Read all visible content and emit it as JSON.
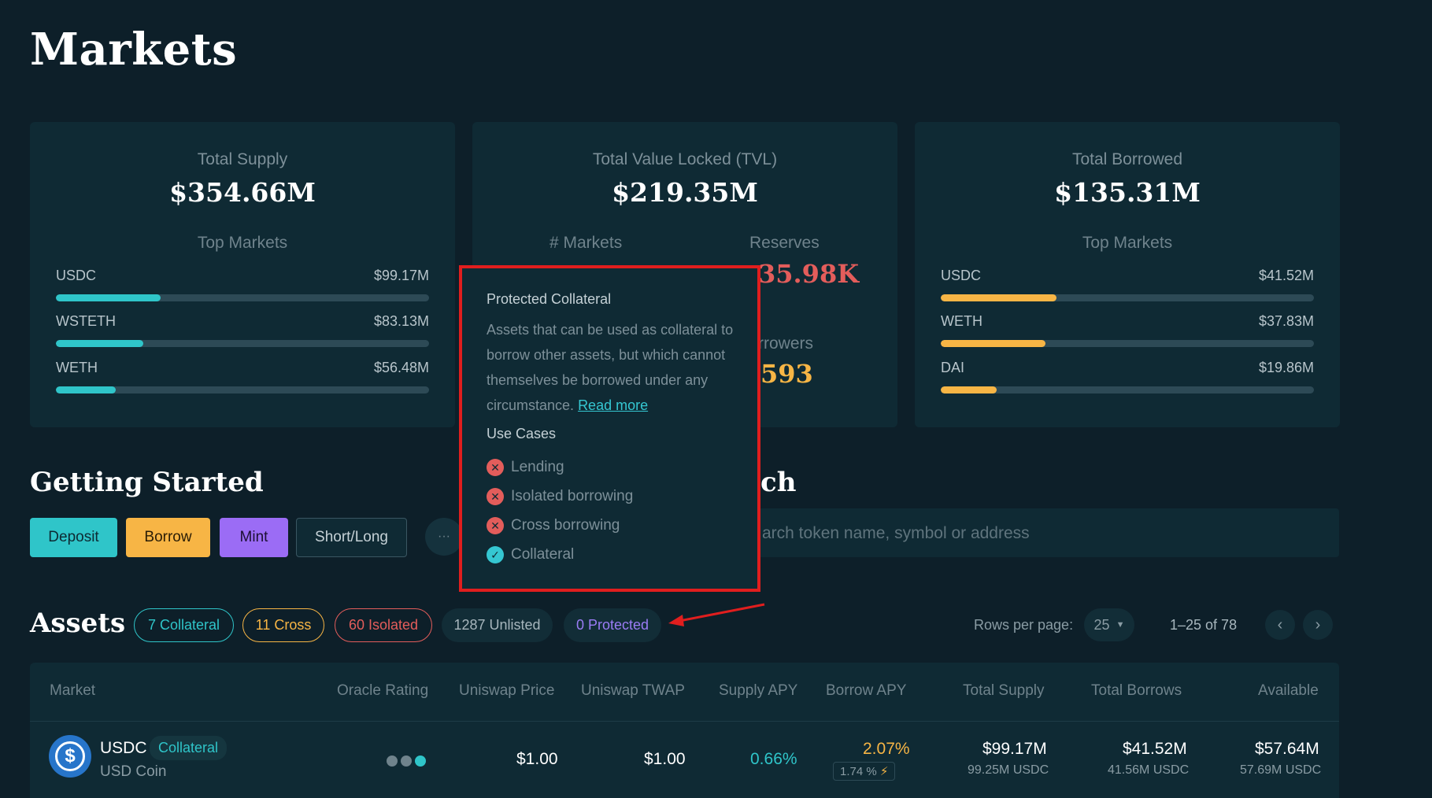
{
  "page": {
    "title": "Markets"
  },
  "cards": {
    "supply": {
      "label": "Total Supply",
      "value": "$354.66M",
      "top_label": "Top Markets",
      "items": [
        {
          "name": "USDC",
          "value": "$99.17M",
          "fraction": 0.28
        },
        {
          "name": "WSTETH",
          "value": "$83.13M",
          "fraction": 0.235
        },
        {
          "name": "WETH",
          "value": "$56.48M",
          "fraction": 0.16
        }
      ]
    },
    "tvl": {
      "label": "Total Value Locked (TVL)",
      "value": "$219.35M",
      "markets_label": "# Markets",
      "reserves_label": "Reserves",
      "reserves_value": "35.98K",
      "borrowers_label": "rrowers",
      "borrowers_value": "593"
    },
    "borrowed": {
      "label": "Total Borrowed",
      "value": "$135.31M",
      "top_label": "Top Markets",
      "items": [
        {
          "name": "USDC",
          "value": "$41.52M",
          "fraction": 0.31
        },
        {
          "name": "WETH",
          "value": "$37.83M",
          "fraction": 0.28
        },
        {
          "name": "DAI",
          "value": "$19.86M",
          "fraction": 0.15
        }
      ]
    }
  },
  "getting_started": {
    "title": "Getting Started",
    "buttons": {
      "deposit": "Deposit",
      "borrow": "Borrow",
      "mint": "Mint",
      "short_long": "Short/Long"
    },
    "more": "···"
  },
  "search": {
    "title_tail": "ch",
    "placeholder": "arch token name, symbol or address"
  },
  "assets": {
    "title": "Assets",
    "filters": {
      "collateral": "7 Collateral",
      "cross": "11 Cross",
      "isolated": "60 Isolated",
      "unlisted": "1287 Unlisted",
      "protected": "0 Protected"
    },
    "rows_per_page_label": "Rows per page:",
    "rows_per_page_value": "25",
    "range": "1–25 of 78",
    "prev": "‹",
    "next": "›"
  },
  "table": {
    "headers": {
      "market": "Market",
      "oracle": "Oracle Rating",
      "price": "Uniswap Price",
      "twap": "Uniswap TWAP",
      "supply_apy": "Supply APY",
      "borrow_apy": "Borrow APY",
      "total_supply": "Total Supply",
      "total_borrows": "Total Borrows",
      "available": "Available"
    },
    "row": {
      "symbol": "USDC",
      "badge": "Collateral",
      "name": "USD Coin",
      "price": "$1.00",
      "twap": "$1.00",
      "supply_apy": "0.66%",
      "borrow_apy": "2.07%",
      "borrow_apy_sub": "1.74 %",
      "total_supply": "$99.17M",
      "total_supply_sub": "99.25M USDC",
      "total_borrows": "$41.52M",
      "total_borrows_sub": "41.56M USDC",
      "available": "$57.64M",
      "available_sub": "57.69M USDC"
    }
  },
  "tooltip": {
    "title": "Protected Collateral",
    "body": "Assets that can be used as collateral to borrow other assets, but which cannot themselves be borrowed under any circumstance.",
    "link": "Read more",
    "use_cases_title": "Use Cases",
    "use_cases": [
      {
        "label": "Lending",
        "enabled": false
      },
      {
        "label": "Isolated borrowing",
        "enabled": false
      },
      {
        "label": "Cross borrowing",
        "enabled": false
      },
      {
        "label": "Collateral",
        "enabled": true
      }
    ]
  },
  "colors": {
    "teal": "#2fc5c9",
    "orange": "#f7b545",
    "purple": "#9b6cf5",
    "red": "#e35d5b",
    "annotation_red": "#e01e1e"
  }
}
